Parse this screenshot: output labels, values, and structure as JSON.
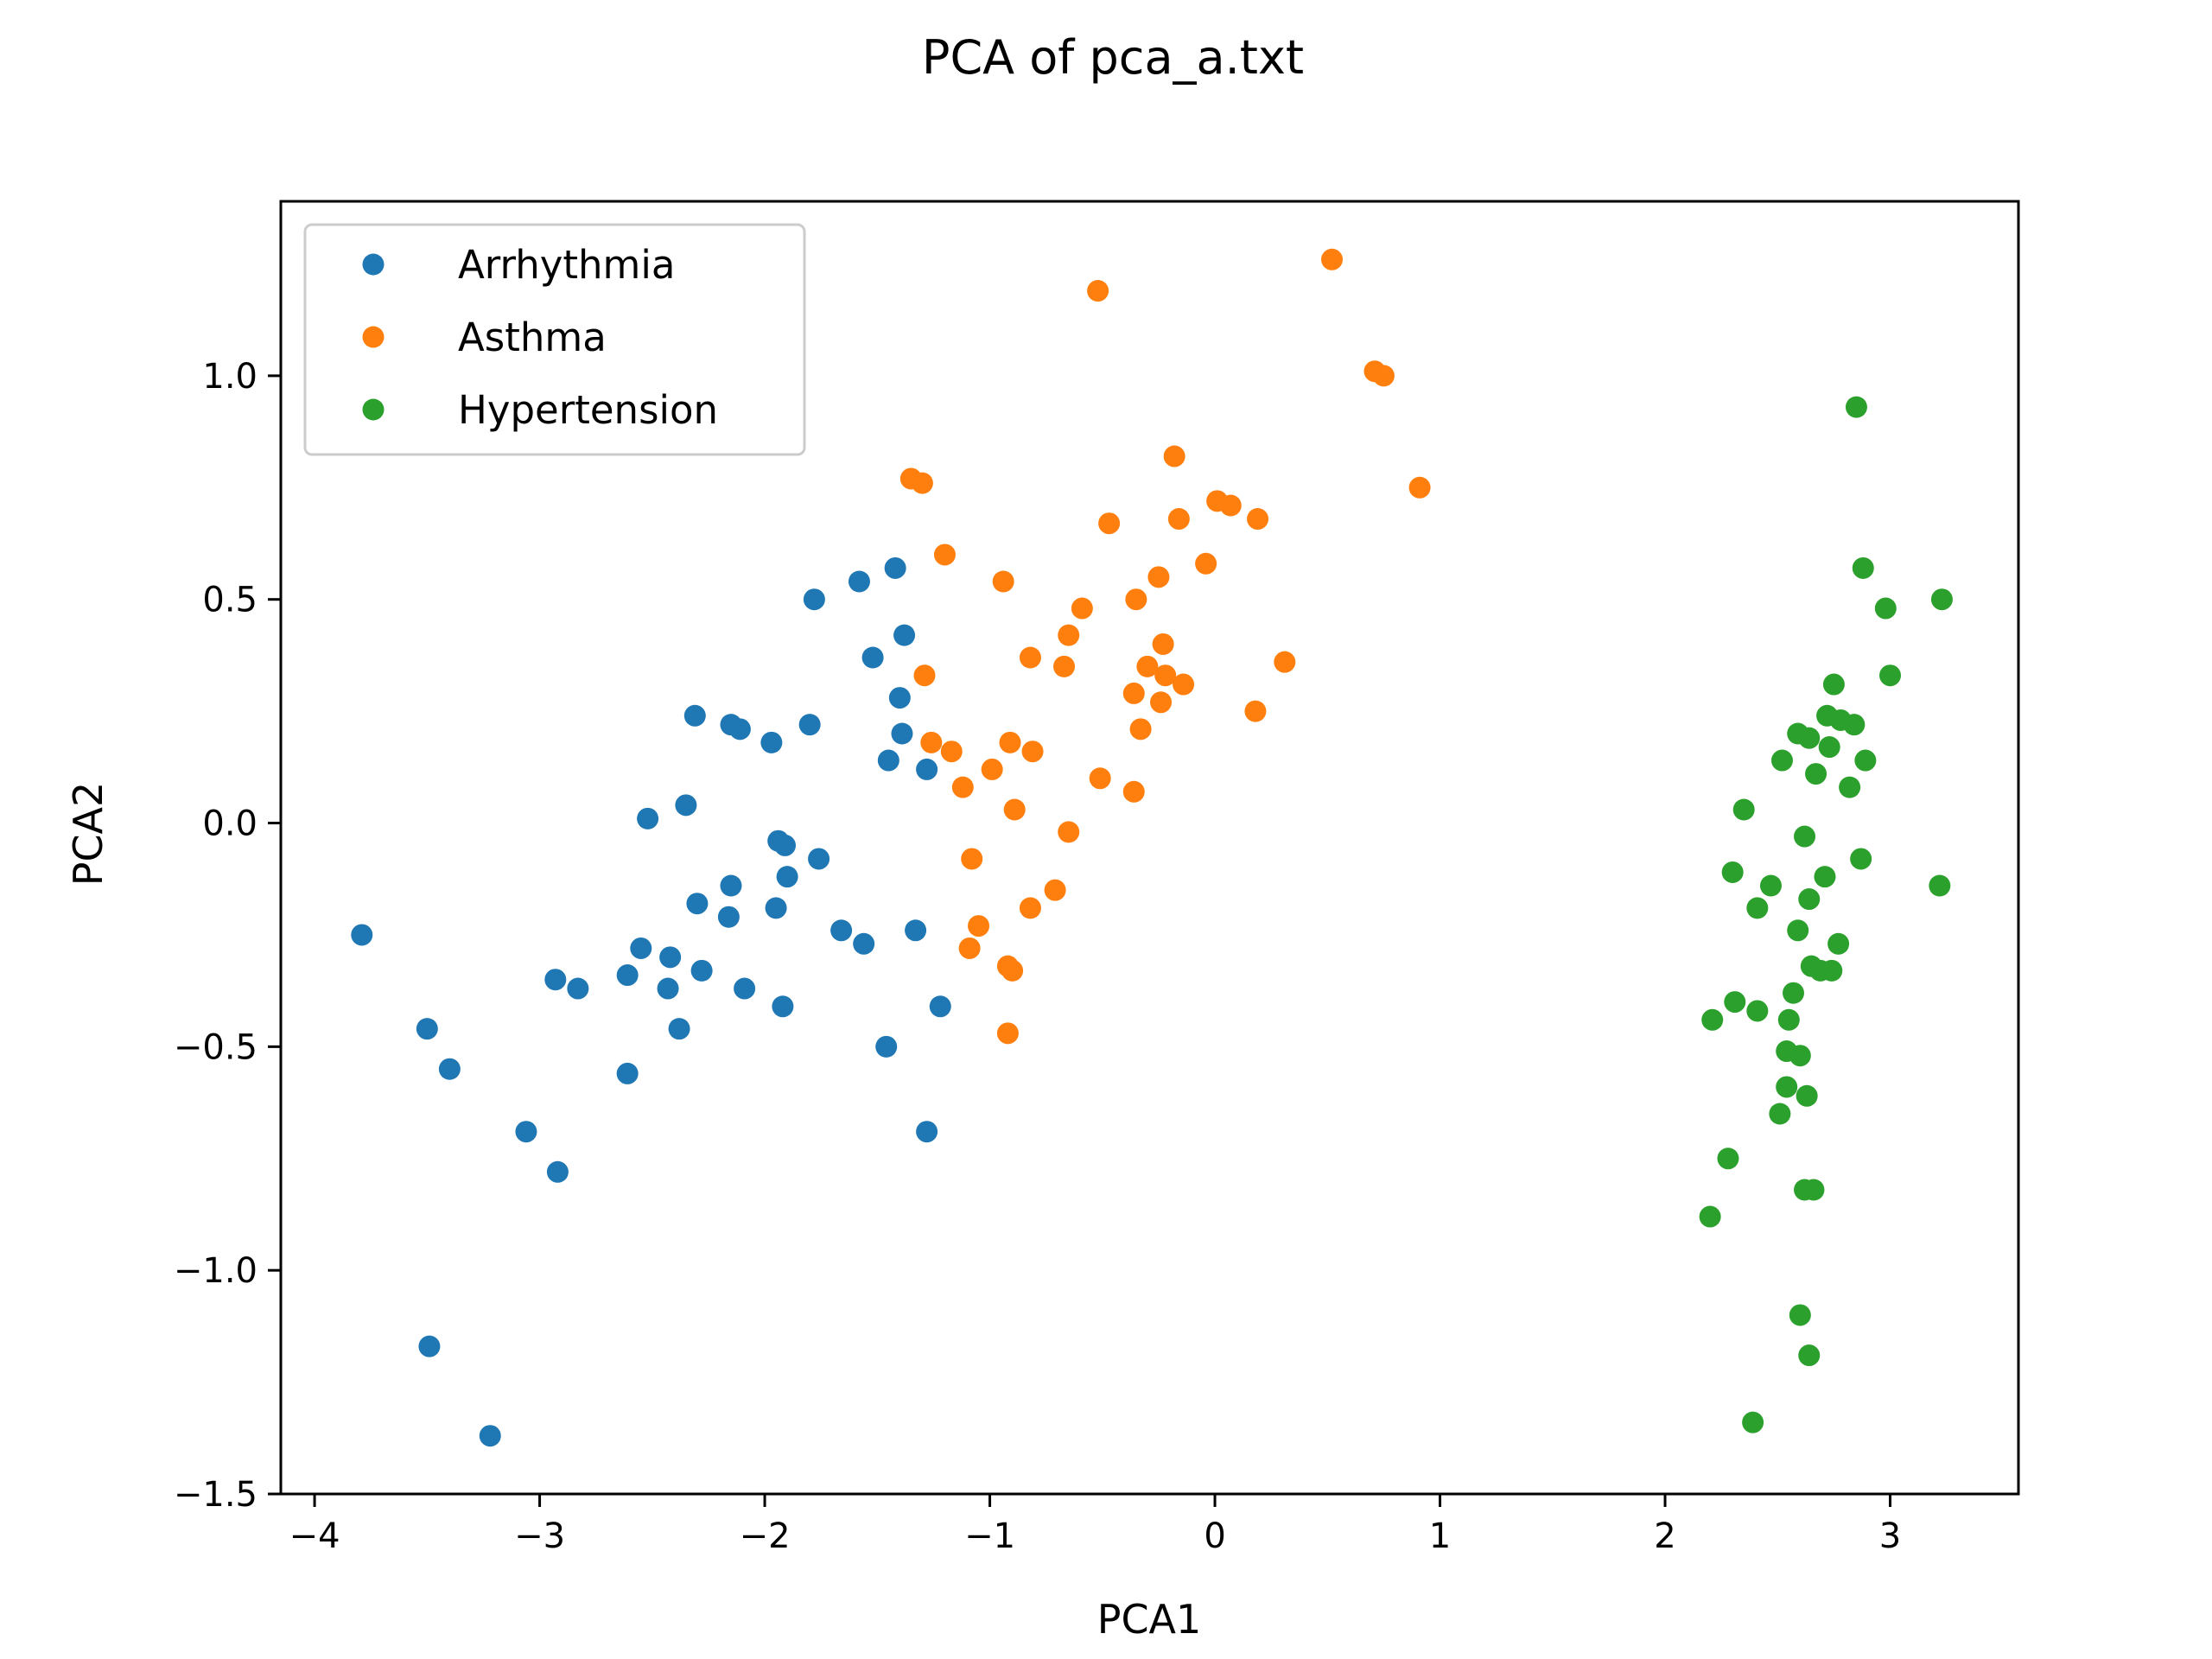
{
  "chart_data": {
    "type": "scatter",
    "title": "PCA of pca_a.txt",
    "xlabel": "PCA1",
    "ylabel": "PCA2",
    "xlim": [
      -4.15,
      3.57
    ],
    "ylim": [
      -1.5,
      1.39
    ],
    "xticks": [
      -4,
      -3,
      -2,
      -1,
      0,
      1,
      2,
      3
    ],
    "xtick_labels": [
      "−4",
      "−3",
      "−2",
      "−1",
      "0",
      "1",
      "2",
      "3"
    ],
    "yticks": [
      -1.5,
      -1.0,
      -0.5,
      0.0,
      0.5,
      1.0
    ],
    "ytick_labels": [
      "−1.5",
      "−1.0",
      "−0.5",
      "0.0",
      "0.5",
      "1.0"
    ],
    "grid": false,
    "legend_position": "top-left",
    "series": [
      {
        "name": "Arrhythmia",
        "color": "#1f77b4",
        "points": [
          [
            -3.79,
            -0.25
          ],
          [
            -3.5,
            -0.46
          ],
          [
            -3.4,
            -0.55
          ],
          [
            -3.49,
            -1.17
          ],
          [
            -3.22,
            -1.37
          ],
          [
            -3.06,
            -0.69
          ],
          [
            -2.92,
            -0.78
          ],
          [
            -2.93,
            -0.35
          ],
          [
            -2.83,
            -0.37
          ],
          [
            -2.61,
            -0.34
          ],
          [
            -2.61,
            -0.56
          ],
          [
            -2.55,
            -0.28
          ],
          [
            -2.52,
            0.01
          ],
          [
            -2.43,
            -0.37
          ],
          [
            -2.42,
            -0.3
          ],
          [
            -2.38,
            -0.46
          ],
          [
            -2.35,
            0.04
          ],
          [
            -2.31,
            0.24
          ],
          [
            -2.3,
            -0.18
          ],
          [
            -2.28,
            -0.33
          ],
          [
            -2.16,
            -0.21
          ],
          [
            -2.15,
            -0.14
          ],
          [
            -2.15,
            0.22
          ],
          [
            -2.11,
            0.21
          ],
          [
            -2.09,
            -0.37
          ],
          [
            -1.97,
            0.18
          ],
          [
            -1.94,
            -0.04
          ],
          [
            -1.95,
            -0.19
          ],
          [
            -1.92,
            -0.41
          ],
          [
            -1.91,
            -0.05
          ],
          [
            -1.9,
            -0.12
          ],
          [
            -1.8,
            0.22
          ],
          [
            -1.78,
            0.5
          ],
          [
            -1.76,
            -0.08
          ],
          [
            -1.66,
            -0.24
          ],
          [
            -1.58,
            0.54
          ],
          [
            -1.56,
            -0.27
          ],
          [
            -1.52,
            0.37
          ],
          [
            -1.46,
            -0.5
          ],
          [
            -1.45,
            0.14
          ],
          [
            -1.42,
            0.57
          ],
          [
            -1.4,
            0.28
          ],
          [
            -1.39,
            0.2
          ],
          [
            -1.38,
            0.42
          ],
          [
            -1.33,
            -0.24
          ],
          [
            -1.28,
            0.12
          ],
          [
            -1.28,
            -0.69
          ],
          [
            -1.22,
            -0.41
          ]
        ]
      },
      {
        "name": "Asthma",
        "color": "#ff7f0e",
        "points": [
          [
            -1.35,
            0.77
          ],
          [
            -1.3,
            0.76
          ],
          [
            -1.29,
            0.33
          ],
          [
            -1.26,
            0.18
          ],
          [
            -1.2,
            0.6
          ],
          [
            -1.17,
            0.16
          ],
          [
            -1.12,
            0.08
          ],
          [
            -1.09,
            -0.28
          ],
          [
            -1.08,
            -0.08
          ],
          [
            -1.05,
            -0.23
          ],
          [
            -0.99,
            0.12
          ],
          [
            -0.94,
            0.54
          ],
          [
            -0.92,
            -0.32
          ],
          [
            -0.92,
            -0.47
          ],
          [
            -0.91,
            0.18
          ],
          [
            -0.9,
            -0.33
          ],
          [
            -0.89,
            0.03
          ],
          [
            -0.82,
            -0.19
          ],
          [
            -0.82,
            0.37
          ],
          [
            -0.81,
            0.16
          ],
          [
            -0.71,
            -0.15
          ],
          [
            -0.67,
            0.35
          ],
          [
            -0.65,
            0.42
          ],
          [
            -0.65,
            -0.02
          ],
          [
            -0.59,
            0.48
          ],
          [
            -0.52,
            1.19
          ],
          [
            -0.51,
            0.1
          ],
          [
            -0.47,
            0.67
          ],
          [
            -0.36,
            0.29
          ],
          [
            -0.36,
            0.07
          ],
          [
            -0.35,
            0.5
          ],
          [
            -0.33,
            0.21
          ],
          [
            -0.3,
            0.35
          ],
          [
            -0.25,
            0.55
          ],
          [
            -0.24,
            0.27
          ],
          [
            -0.23,
            0.4
          ],
          [
            -0.22,
            0.33
          ],
          [
            -0.18,
            0.82
          ],
          [
            -0.16,
            0.68
          ],
          [
            -0.14,
            0.31
          ],
          [
            -0.04,
            0.58
          ],
          [
            0.01,
            0.72
          ],
          [
            0.07,
            0.71
          ],
          [
            0.18,
            0.25
          ],
          [
            0.19,
            0.68
          ],
          [
            0.31,
            0.36
          ],
          [
            0.52,
            1.26
          ],
          [
            0.71,
            1.01
          ],
          [
            0.75,
            1.0
          ],
          [
            0.91,
            0.75
          ]
        ]
      },
      {
        "name": "Hypertension",
        "color": "#2ca02c",
        "points": [
          [
            2.2,
            -0.88
          ],
          [
            2.21,
            -0.44
          ],
          [
            2.28,
            -0.75
          ],
          [
            2.3,
            -0.11
          ],
          [
            2.31,
            -0.4
          ],
          [
            2.35,
            0.03
          ],
          [
            2.39,
            -1.34
          ],
          [
            2.41,
            -0.19
          ],
          [
            2.41,
            -0.42
          ],
          [
            2.47,
            -0.14
          ],
          [
            2.51,
            -0.65
          ],
          [
            2.52,
            0.14
          ],
          [
            2.54,
            -0.59
          ],
          [
            2.54,
            -0.51
          ],
          [
            2.55,
            -0.44
          ],
          [
            2.57,
            -0.38
          ],
          [
            2.59,
            0.2
          ],
          [
            2.59,
            -0.24
          ],
          [
            2.6,
            -0.52
          ],
          [
            2.6,
            -1.1
          ],
          [
            2.62,
            -0.03
          ],
          [
            2.62,
            -0.82
          ],
          [
            2.63,
            -0.61
          ],
          [
            2.64,
            0.19
          ],
          [
            2.64,
            -0.17
          ],
          [
            2.64,
            -1.19
          ],
          [
            2.65,
            -0.32
          ],
          [
            2.66,
            -0.82
          ],
          [
            2.67,
            0.11
          ],
          [
            2.69,
            -0.33
          ],
          [
            2.71,
            -0.12
          ],
          [
            2.72,
            0.24
          ],
          [
            2.73,
            0.17
          ],
          [
            2.74,
            -0.33
          ],
          [
            2.75,
            0.31
          ],
          [
            2.77,
            -0.27
          ],
          [
            2.78,
            0.23
          ],
          [
            2.82,
            0.08
          ],
          [
            2.84,
            0.22
          ],
          [
            2.85,
            0.93
          ],
          [
            2.87,
            -0.08
          ],
          [
            2.88,
            0.57
          ],
          [
            2.89,
            0.14
          ],
          [
            2.98,
            0.48
          ],
          [
            3.0,
            0.33
          ],
          [
            3.22,
            -0.14
          ],
          [
            3.23,
            0.5
          ]
        ]
      }
    ]
  }
}
